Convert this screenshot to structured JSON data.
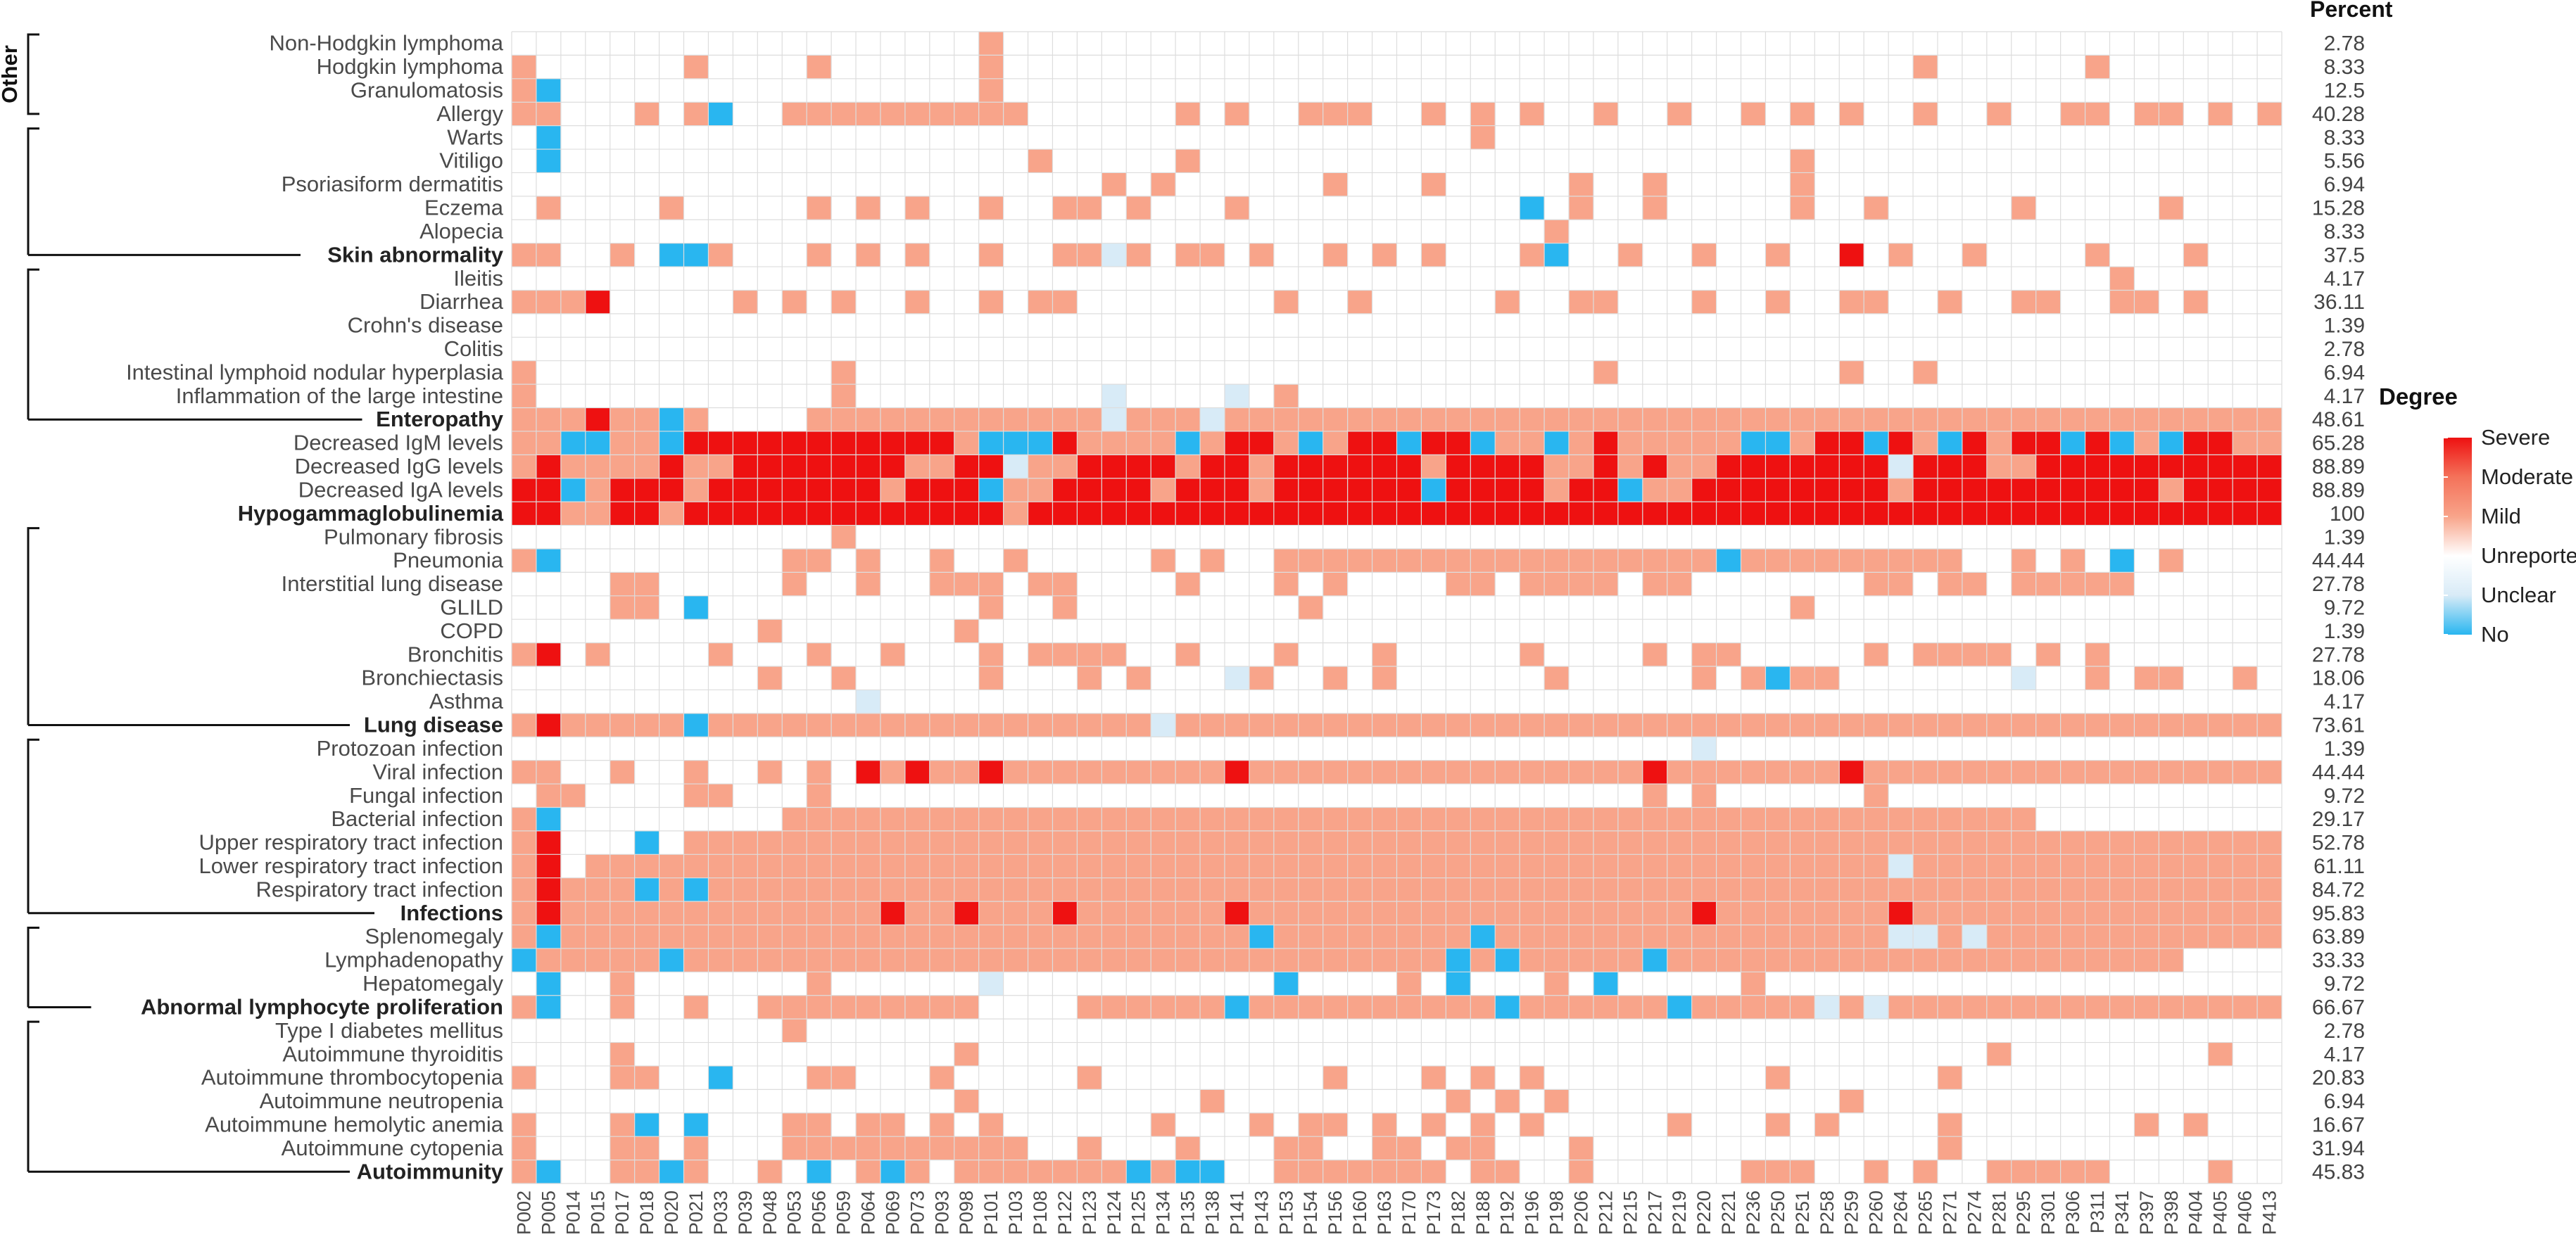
{
  "chart_data": {
    "type": "heatmap",
    "title": "",
    "xlabel": "",
    "ylabel": "",
    "columns": [
      "P002",
      "P005",
      "P014",
      "P015",
      "P017",
      "P018",
      "P020",
      "P021",
      "P033",
      "P039",
      "P048",
      "P053",
      "P056",
      "P059",
      "P064",
      "P069",
      "P073",
      "P093",
      "P098",
      "P101",
      "P103",
      "P108",
      "P122",
      "P123",
      "P124",
      "P125",
      "P134",
      "P135",
      "P138",
      "P141",
      "P143",
      "P153",
      "P154",
      "P156",
      "P160",
      "P163",
      "P170",
      "P173",
      "P182",
      "P188",
      "P192",
      "P196",
      "P198",
      "P206",
      "P212",
      "P215",
      "P217",
      "P219",
      "P220",
      "P221",
      "P236",
      "P250",
      "P251",
      "P258",
      "P259",
      "P260",
      "P264",
      "P265",
      "P271",
      "P274",
      "P281",
      "P295",
      "P301",
      "P306",
      "P311",
      "P341",
      "P397",
      "P398",
      "P404",
      "P405",
      "P406",
      "P413"
    ],
    "rows": [
      {
        "label": "Non-Hodgkin lymphoma",
        "bold": false,
        "percent": "2.78"
      },
      {
        "label": "Hodgkin lymphoma",
        "bold": false,
        "percent": "8.33"
      },
      {
        "label": "Granulomatosis",
        "bold": false,
        "percent": "12.5"
      },
      {
        "label": "Allergy",
        "bold": false,
        "percent": "40.28"
      },
      {
        "label": "Warts",
        "bold": false,
        "percent": "8.33"
      },
      {
        "label": "Vitiligo",
        "bold": false,
        "percent": "5.56"
      },
      {
        "label": "Psoriasiform dermatitis",
        "bold": false,
        "percent": "6.94"
      },
      {
        "label": "Eczema",
        "bold": false,
        "percent": "15.28"
      },
      {
        "label": "Alopecia",
        "bold": false,
        "percent": "8.33"
      },
      {
        "label": "Skin abnormality",
        "bold": true,
        "percent": "37.5"
      },
      {
        "label": "Ileitis",
        "bold": false,
        "percent": "4.17"
      },
      {
        "label": "Diarrhea",
        "bold": false,
        "percent": "36.11"
      },
      {
        "label": "Crohn's disease",
        "bold": false,
        "percent": "1.39"
      },
      {
        "label": "Colitis",
        "bold": false,
        "percent": "2.78"
      },
      {
        "label": "Intestinal lymphoid nodular hyperplasia",
        "bold": false,
        "percent": "6.94"
      },
      {
        "label": "Inflammation of the large intestine",
        "bold": false,
        "percent": "4.17"
      },
      {
        "label": "Enteropathy",
        "bold": true,
        "percent": "48.61"
      },
      {
        "label": "Decreased IgM levels",
        "bold": false,
        "percent": "65.28"
      },
      {
        "label": "Decreased IgG levels",
        "bold": false,
        "percent": "88.89"
      },
      {
        "label": "Decreased IgA levels",
        "bold": false,
        "percent": "88.89"
      },
      {
        "label": "Hypogammaglobulinemia",
        "bold": true,
        "percent": "100"
      },
      {
        "label": "Pulmonary fibrosis",
        "bold": false,
        "percent": "1.39"
      },
      {
        "label": "Pneumonia",
        "bold": false,
        "percent": "44.44"
      },
      {
        "label": "Interstitial lung disease",
        "bold": false,
        "percent": "27.78"
      },
      {
        "label": "GLILD",
        "bold": false,
        "percent": "9.72"
      },
      {
        "label": "COPD",
        "bold": false,
        "percent": "1.39"
      },
      {
        "label": "Bronchitis",
        "bold": false,
        "percent": "27.78"
      },
      {
        "label": "Bronchiectasis",
        "bold": false,
        "percent": "18.06"
      },
      {
        "label": "Asthma",
        "bold": false,
        "percent": "4.17"
      },
      {
        "label": "Lung disease",
        "bold": true,
        "percent": "73.61"
      },
      {
        "label": "Protozoan infection",
        "bold": false,
        "percent": "1.39"
      },
      {
        "label": "Viral infection",
        "bold": false,
        "percent": "44.44"
      },
      {
        "label": "Fungal infection",
        "bold": false,
        "percent": "9.72"
      },
      {
        "label": "Bacterial infection",
        "bold": false,
        "percent": "29.17"
      },
      {
        "label": "Upper respiratory tract infection",
        "bold": false,
        "percent": "52.78"
      },
      {
        "label": "Lower respiratory tract infection",
        "bold": false,
        "percent": "61.11"
      },
      {
        "label": "Respiratory tract infection",
        "bold": false,
        "percent": "84.72"
      },
      {
        "label": "Infections",
        "bold": true,
        "percent": "95.83"
      },
      {
        "label": "Splenomegaly",
        "bold": false,
        "percent": "63.89"
      },
      {
        "label": "Lymphadenopathy",
        "bold": false,
        "percent": "33.33"
      },
      {
        "label": "Hepatomegaly",
        "bold": false,
        "percent": "9.72"
      },
      {
        "label": "Abnormal lymphocyte proliferation",
        "bold": true,
        "percent": "66.67"
      },
      {
        "label": "Type I diabetes mellitus",
        "bold": false,
        "percent": "2.78"
      },
      {
        "label": "Autoimmune thyroiditis",
        "bold": false,
        "percent": "4.17"
      },
      {
        "label": "Autoimmune thrombocytopenia",
        "bold": false,
        "percent": "20.83"
      },
      {
        "label": "Autoimmune neutropenia",
        "bold": false,
        "percent": "6.94"
      },
      {
        "label": "Autoimmune hemolytic anemia",
        "bold": false,
        "percent": "16.67"
      },
      {
        "label": "Autoimmune cytopenia",
        "bold": false,
        "percent": "31.94"
      },
      {
        "label": "Autoimmunity",
        "bold": true,
        "percent": "45.83"
      }
    ],
    "percent_header": "Percent",
    "groups": [
      {
        "label": "Other",
        "rows": [
          0,
          3
        ]
      },
      {
        "label": "",
        "rows": [
          4,
          9
        ]
      },
      {
        "label": "",
        "rows": [
          10,
          16
        ]
      },
      {
        "label": "",
        "rows": [
          21,
          29
        ]
      },
      {
        "label": "",
        "rows": [
          30,
          37
        ]
      },
      {
        "label": "",
        "rows": [
          38,
          41
        ]
      },
      {
        "label": "",
        "rows": [
          42,
          48
        ]
      }
    ],
    "legend": {
      "title": "Degree",
      "position": "right",
      "levels": [
        {
          "key": "S",
          "label": "Severe",
          "color": "#ee1111"
        },
        {
          "key": "M",
          "label": "Moderate",
          "color": "#f4725a"
        },
        {
          "key": "L",
          "label": "Mild",
          "color": "#f8a48a"
        },
        {
          "key": "U",
          "label": "Unreported",
          "color": "#ffffff"
        },
        {
          "key": "C",
          "label": "Unclear",
          "color": "#d8ebf7"
        },
        {
          "key": "N",
          "label": "No",
          "color": "#29b6f0"
        }
      ]
    },
    "empty_color": "#ffffff",
    "grid_color": "#dddddd",
    "cells": [
      "...................L....................................................",
      "L......L....L......L.....................................L......L......",
      "LN.................L...................................................",
      "LL...L.LN..LLLLLLLLLL......L.L..LLL..L.L.L..L..L..L.L.L..L..L..LL.LL.L.L",
      ".N.....................................L...............................",
      ".N...................L.....L........................L..............",
      "........................L.L......L...L.....L..L.....L..................",
      ".L....L.....L.L.L..L..LL.L...L...........N.L..L.....L..L.....L.....L...",
      "..........................................L...........................",
      "LL..L.NNL...L.L.L..L..LLCL.LL.L..L.L.L...LN..L..L..L..S.L..L....L...L..",
      ".................................................................L....",
      "LLLS.....L.L.L..L..L.LL........L..L.....L..LL...L..L..LL..L..LL..LL.L..",
      "............................................................................",
      "............................................................................",
      "L............L..............................L.........L..L.......",
      "L............L..........C....C.L.........................",
      "LLLSLLNL....LLLLLLLLLLLLCLLLCLLLLLLLLLLLLLLLLLLLLLLLLLLLLLLLLLLLLLLLLLLL",
      "LLNNLLNSSSSSSSSSSSLNNNSLLLLNLSSLNLSSNSSNLLNLSLLLLLNNLSSNSLNSLSSNSNLNSSLL",
      "LSLLLLSLLSSSSSSSLLSSCLLSSSSLSSLSSSSSSLSSSSLLSLSLLSSSSSSSCSSSLLSSSSSSSSSSSS",
      "SSNLSSSLSSSSSSSLSSSNLLSSSSLSSSLSSSSSSNSSSSLSSNLLSSSSSSSSLSSSSSSSSSSLSSSSN",
      "SSLLSSLSSSSSSSSSSSSSLSSSSSSSSSSSSSSSSSSSSSSSSSSSSSSSSSSSSSSSSSSSSSSSSSSS",
      ".............L........................................................",
      "LN.........LL.L..L..L.....L.L..LLLLLLLLLLLLLLLLLLNLLLLLLLLL..L.L.N.L.",
      "....LL.....L..L..LLL.LL....L...L.L....LL.LLLL.LL.......LL.LL.LLLLL..",
      "....LL.N...........L..L.........L...................L.....................",
      "..........L.......L...............................................",
      "LS.L....L...L..L...L.LLLL..L...L...L.....L....L.LL.....L.LLLL.L.L",
      "..........L..L.....L...L.L...CL..L.L......L.....L.LNLL.......C..L.LL..L",
      "..............C.........................................................",
      "LSLLLLLNLLLLLLLLLLLLLLLLLLCLLLLLLLLLLLLLLLLLLLLLLLLLLLLLLLLLLLLLLLLLLLLL",
      "................................................C...........",
      "LL..L..L..L.L.SLSLLSLLLLLLLLLSLLLLLLLLLLLLLLLLSLLLLLLLSLLLLLLLLLLLLLLLLL",
      ".LL....LL...L.................................L.L......L.................",
      "LN.........LLLLLLLLLLLLLLLLLLLLLLLLLLLLLLLLLLLLLLLLLLLLLLLLLLL....",
      "LS...N.LLLLLLLLLLLLLLLLLLLLLLLLLLLLLLLLLLLLLLLLLLLLLLLLLLLLLLLLLLLLLLLLL",
      "LS.LLLLLLLLLLLLLLLLLLLLLLLLLLLLLLLLLLLLLLLLLLLLLLLLLLLLLCLLLLLLLLLLLLLLL",
      "LSLLLNLNLLLLLLLLLLLLLLLLLLLLLLLLLLLLLLLLLLLLLLLLLLLLLLLLLLLLLLLLLLLLLLLL",
      "LSLLLLLLLLLLLLLSLLSLLLSLLLLLLSLLLLLLLLLLLLLLLLLLSLLLLLLLSLLLLLLLLLLLLLLL",
      "LNLLLLLLLLLLLLLLLLLLLLLLLLLLLLNLLLLLLLLNLLLLLLLLLLLLLLLLCCLCLLLLLLLLLLLLL",
      "NLLLLLNLLLLLLLLLLLLLLLLLLLLLLLLLLLLLLLNLNLLLLLNLLLLLLLLLLLLLLLLLLLLL",
      ".N..L.......L......C...........N....L.N...L.N.....L.........................",
      "LN..L..L..LLLLLLLLL....LLLLLLNLLLLLLLLLLNLLLLLLNLLLLLCLCLLLLLLLLLLLLLLLL",
      "...........L.........................................................",
      "....L.............L.........................................L........L",
      "L...LL..N...LL...L.....L.........L...L.L.L.........L......L...............",
      "..................L.........L.........L.L.L...........L...........................",
      "L...LN.N...LL.LL.L.L......L...L.LL.L.L.L.L.....L...L.L....L.......L.L..",
      "L...LL.L...LLLLLLLLLL..L...L...LL..LL.LL...L..............L...............",
      "LN..LLNL..L.N.LNL.LLLLLLLNLNN..LLLLLLL.LL..L......LLL..L.L..LLLLL....L.."
    ]
  }
}
